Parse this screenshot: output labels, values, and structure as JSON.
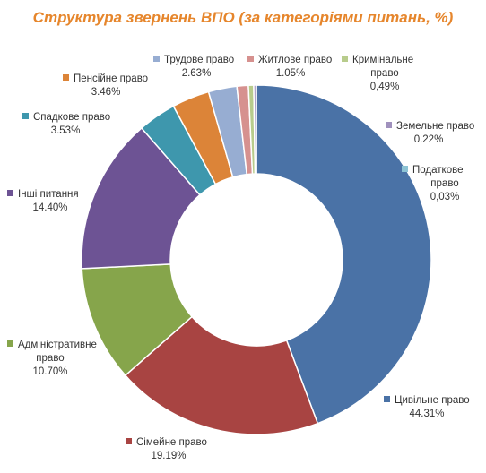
{
  "chart_data": {
    "type": "pie",
    "style": "donut",
    "title": "Структура звернень ВПО (за категоріями питань, %)",
    "title_color": "#e6862c",
    "grid": false,
    "legend": "labels around the chart with colored square markers",
    "series": [
      {
        "name": "Цивільне право",
        "value_label": "44.31%",
        "value": 44.31,
        "color": "#4a72a6"
      },
      {
        "name": "Сімейне право",
        "value_label": "19.19%",
        "value": 19.19,
        "color": "#a84442"
      },
      {
        "name": "Адміністративне право",
        "value_label": "10.70%",
        "value": 10.7,
        "color": "#86a54b"
      },
      {
        "name": "Інші питання",
        "value_label": "14.40%",
        "value": 14.4,
        "color": "#6d5394"
      },
      {
        "name": "Спадкове право",
        "value_label": "3.53%",
        "value": 3.53,
        "color": "#3e97ad"
      },
      {
        "name": "Пенсійне право",
        "value_label": "3.46%",
        "value": 3.46,
        "color": "#dc8438"
      },
      {
        "name": "Трудове право",
        "value_label": "2.63%",
        "value": 2.63,
        "color": "#97add2"
      },
      {
        "name": "Житлове право",
        "value_label": "1.05%",
        "value": 1.05,
        "color": "#d6918f"
      },
      {
        "name": "Кримінальне право",
        "value_label": "0,49%",
        "value": 0.49,
        "color": "#b8cc8c"
      },
      {
        "name": "Земельне право",
        "value_label": "0.22%",
        "value": 0.22,
        "color": "#a091bd"
      },
      {
        "name": "Податкове право",
        "value_label": "0,03%",
        "value": 0.03,
        "color": "#8dc3d4"
      }
    ],
    "labels": [
      {
        "lines": [
          "Цивільне право",
          "44.31%"
        ]
      },
      {
        "lines": [
          "Сімейне право",
          "19.19%"
        ]
      },
      {
        "lines": [
          "Адміністративне",
          "право",
          "10.70%"
        ]
      },
      {
        "lines": [
          "Інші питання",
          "14.40%"
        ]
      },
      {
        "lines": [
          "Спадкове право",
          "3.53%"
        ]
      },
      {
        "lines": [
          "Пенсійне право",
          "3.46%"
        ]
      },
      {
        "lines": [
          "Трудове право",
          "2.63%"
        ]
      },
      {
        "lines": [
          "Житлове право",
          "1.05%"
        ]
      },
      {
        "lines": [
          "Кримінальне",
          "право",
          "0,49%"
        ]
      },
      {
        "lines": [
          "Земельне право",
          "0.22%"
        ]
      },
      {
        "lines": [
          "Податкове",
          "право",
          "0,03%"
        ]
      }
    ]
  }
}
